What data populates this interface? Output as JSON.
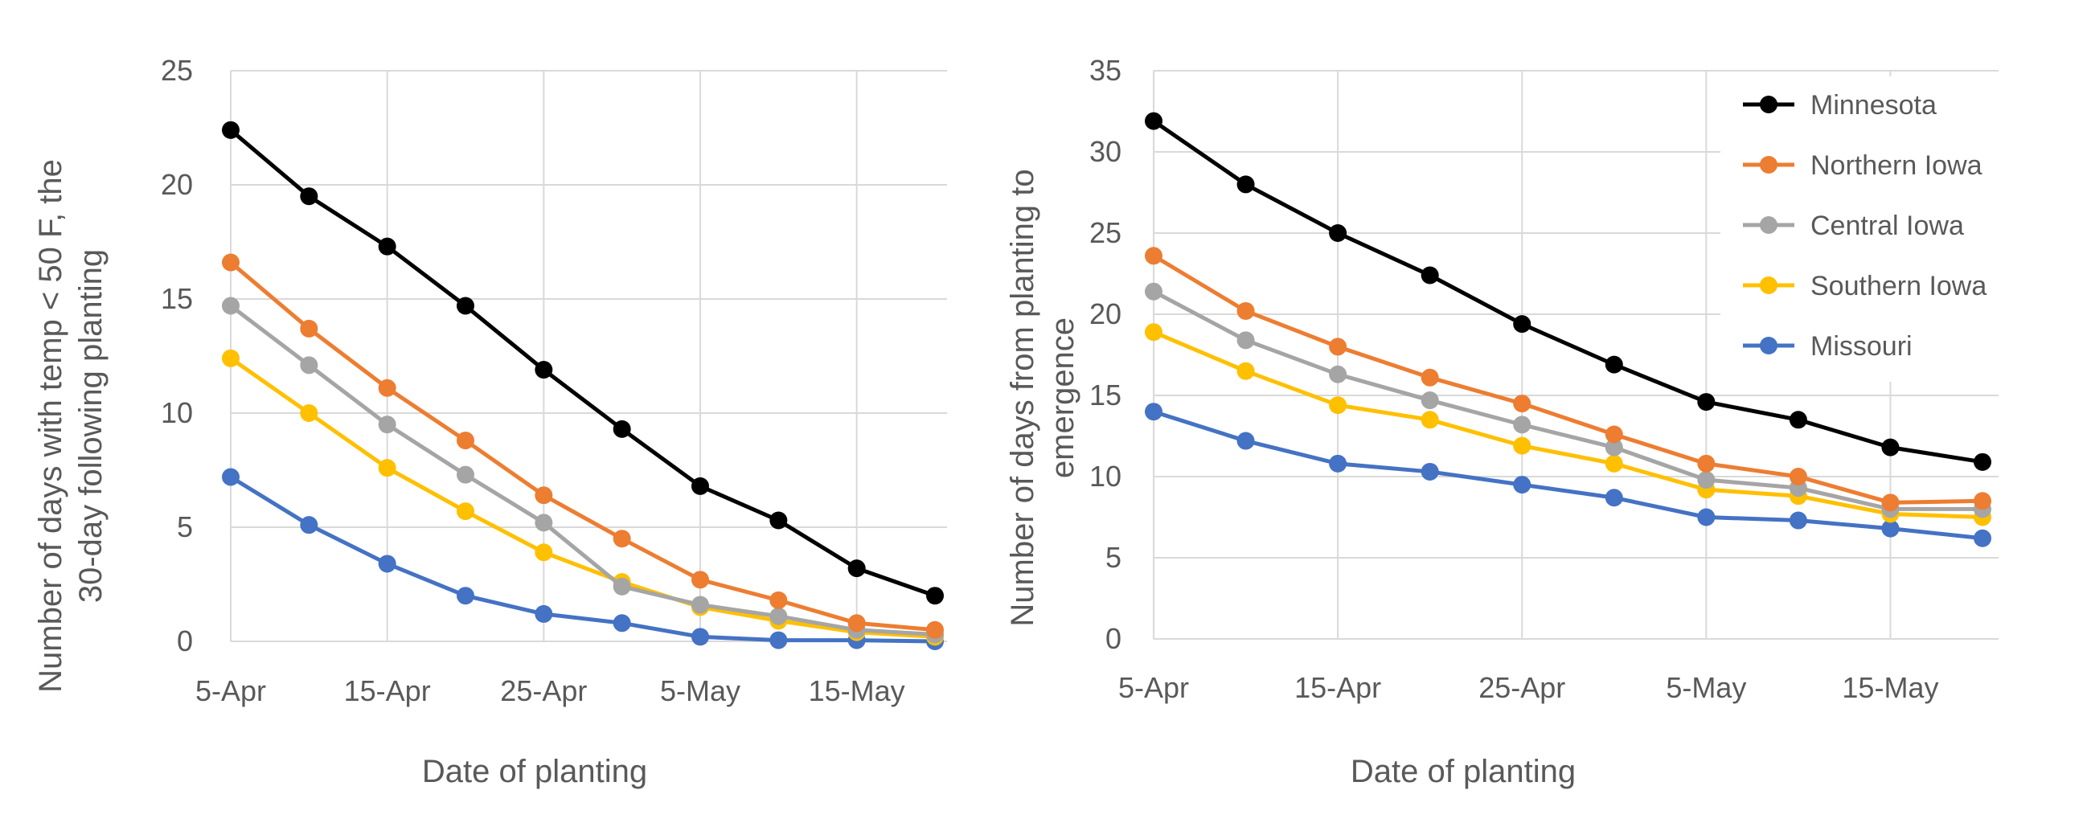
{
  "colors": {
    "Minnesota": "#000000",
    "Northern Iowa": "#ed7d31",
    "Central Iowa": "#a5a5a5",
    "Southern Iowa": "#ffc000",
    "Missouri": "#4472c4",
    "grid": "#d9d9d9",
    "text": "#595959"
  },
  "chart_data": [
    {
      "type": "line",
      "xlabel": "Date of planting",
      "ylabel_lines": [
        "Number of days with temp < 50 F,  the",
        "30-day following planting"
      ],
      "x": [
        "5-Apr",
        "10-Apr",
        "15-Apr",
        "20-Apr",
        "25-Apr",
        "30-Apr",
        "5-May",
        "10-May",
        "15-May",
        "20-May"
      ],
      "x_tick_labels": [
        "5-Apr",
        "15-Apr",
        "25-Apr",
        "5-May",
        "15-May"
      ],
      "ylim": [
        0,
        25
      ],
      "y_ticks": [
        0,
        5,
        10,
        15,
        20,
        25
      ],
      "grid": true,
      "series": [
        {
          "name": "Minnesota",
          "values": [
            22.4,
            19.5,
            17.3,
            14.7,
            11.9,
            9.3,
            6.8,
            5.3,
            3.2,
            2.0
          ]
        },
        {
          "name": "Northern Iowa",
          "values": [
            16.6,
            13.7,
            11.1,
            8.8,
            6.4,
            4.5,
            2.7,
            1.8,
            0.8,
            0.5
          ]
        },
        {
          "name": "Central Iowa",
          "values": [
            14.7,
            12.1,
            9.5,
            7.3,
            5.2,
            2.4,
            1.6,
            1.1,
            0.5,
            0.3
          ]
        },
        {
          "name": "Southern Iowa",
          "values": [
            12.4,
            10.0,
            7.6,
            5.7,
            3.9,
            2.6,
            1.5,
            0.9,
            0.4,
            0.2
          ]
        },
        {
          "name": "Missouri",
          "values": [
            7.2,
            5.1,
            3.4,
            2.0,
            1.2,
            0.8,
            0.2,
            0.05,
            0.05,
            0.0
          ]
        }
      ]
    },
    {
      "type": "line",
      "xlabel": "Date of planting",
      "ylabel_lines": [
        "Number of days from planting to",
        "emergence"
      ],
      "x": [
        "5-Apr",
        "10-Apr",
        "15-Apr",
        "20-Apr",
        "25-Apr",
        "30-Apr",
        "5-May",
        "10-May",
        "15-May",
        "20-May"
      ],
      "x_tick_labels": [
        "5-Apr",
        "15-Apr",
        "25-Apr",
        "5-May",
        "15-May"
      ],
      "ylim": [
        0,
        35
      ],
      "y_ticks": [
        0,
        5,
        10,
        15,
        20,
        25,
        30,
        35
      ],
      "grid": true,
      "legend": "top-right",
      "series": [
        {
          "name": "Minnesota",
          "values": [
            31.9,
            28.0,
            25.0,
            22.4,
            19.4,
            16.9,
            14.6,
            13.5,
            11.8,
            10.9
          ]
        },
        {
          "name": "Northern Iowa",
          "values": [
            23.6,
            20.2,
            18.0,
            16.1,
            14.5,
            12.6,
            10.8,
            10.0,
            8.4,
            8.5
          ]
        },
        {
          "name": "Central Iowa",
          "values": [
            21.4,
            18.4,
            16.3,
            14.7,
            13.2,
            11.8,
            9.8,
            9.3,
            8.0,
            8.0
          ]
        },
        {
          "name": "Southern Iowa",
          "values": [
            18.9,
            16.5,
            14.4,
            13.5,
            11.9,
            10.8,
            9.2,
            8.8,
            7.7,
            7.5
          ]
        },
        {
          "name": "Missouri",
          "values": [
            14.0,
            12.2,
            10.8,
            10.3,
            9.5,
            8.7,
            7.5,
            7.3,
            6.8,
            6.2
          ]
        }
      ]
    }
  ]
}
